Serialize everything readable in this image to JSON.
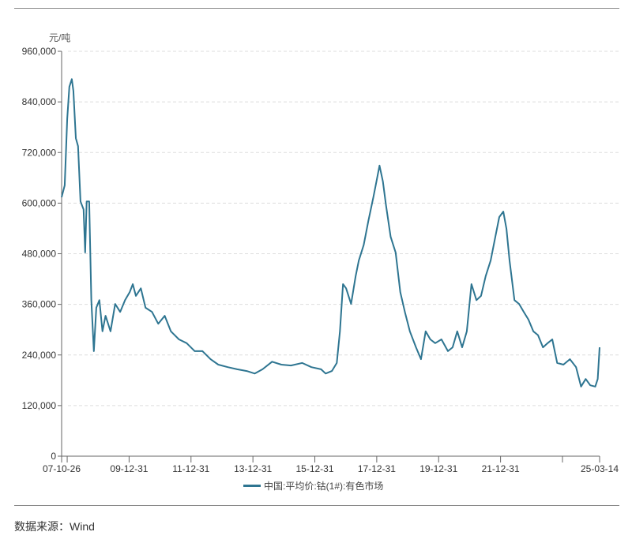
{
  "source": "数据来源：Wind",
  "chart_data": {
    "type": "line",
    "title": "",
    "ylabel": "元/吨",
    "xlabel": "",
    "ylim": [
      0,
      960000
    ],
    "xlim": [
      2007.82,
      2025.2
    ],
    "y_ticks": [
      {
        "value": 0,
        "label": "0"
      },
      {
        "value": 120000,
        "label": "120,000"
      },
      {
        "value": 240000,
        "label": "240,000"
      },
      {
        "value": 360000,
        "label": "360,000"
      },
      {
        "value": 480000,
        "label": "480,000"
      },
      {
        "value": 600000,
        "label": "600,000"
      },
      {
        "value": 720000,
        "label": "720,000"
      },
      {
        "value": 840000,
        "label": "840,000"
      },
      {
        "value": 960000,
        "label": "960,000"
      }
    ],
    "x_ticks": [
      {
        "value": 2007.82,
        "label": "07-10-26"
      },
      {
        "value": 2008.0,
        "label": ""
      },
      {
        "value": 2010.0,
        "label": "09-12-31"
      },
      {
        "value": 2012.0,
        "label": "11-12-31"
      },
      {
        "value": 2014.0,
        "label": "13-12-31"
      },
      {
        "value": 2016.0,
        "label": "15-12-31"
      },
      {
        "value": 2018.0,
        "label": "17-12-31"
      },
      {
        "value": 2020.0,
        "label": "19-12-31"
      },
      {
        "value": 2022.0,
        "label": "21-12-31"
      },
      {
        "value": 2024.0,
        "label": ""
      },
      {
        "value": 2025.2,
        "label": "25-03-14"
      }
    ],
    "grid": "horizontal-dashed",
    "legend_position": "bottom-center",
    "series": [
      {
        "name": "中国:平均价:钴(1#):有色市场",
        "color": "#2e7591",
        "x": [
          2007.82,
          2007.92,
          2008.0,
          2008.07,
          2008.15,
          2008.2,
          2008.28,
          2008.35,
          2008.43,
          2008.53,
          2008.58,
          2008.63,
          2008.71,
          2008.78,
          2008.86,
          2008.94,
          2009.04,
          2009.14,
          2009.24,
          2009.4,
          2009.55,
          2009.71,
          2009.87,
          2010.02,
          2010.12,
          2010.22,
          2010.38,
          2010.53,
          2010.74,
          2010.94,
          2011.15,
          2011.35,
          2011.61,
          2011.86,
          2012.12,
          2012.37,
          2012.63,
          2012.88,
          2013.19,
          2013.49,
          2013.8,
          2014.06,
          2014.31,
          2014.62,
          2014.92,
          2015.23,
          2015.59,
          2015.89,
          2016.2,
          2016.35,
          2016.55,
          2016.71,
          2016.81,
          2016.91,
          2017.01,
          2017.17,
          2017.32,
          2017.42,
          2017.58,
          2017.73,
          2017.89,
          2017.99,
          2018.09,
          2018.2,
          2018.3,
          2018.45,
          2018.61,
          2018.76,
          2018.91,
          2019.07,
          2019.27,
          2019.43,
          2019.58,
          2019.73,
          2019.89,
          2020.09,
          2020.3,
          2020.45,
          2020.6,
          2020.76,
          2020.91,
          2021.06,
          2021.22,
          2021.37,
          2021.52,
          2021.68,
          2021.83,
          2021.96,
          2022.09,
          2022.19,
          2022.29,
          2022.45,
          2022.6,
          2022.75,
          2022.9,
          2023.06,
          2023.21,
          2023.37,
          2023.52,
          2023.67,
          2023.83,
          2024.03,
          2024.24,
          2024.44,
          2024.6,
          2024.75,
          2024.9,
          2025.06,
          2025.14,
          2025.2
        ],
        "y": [
          614000,
          642000,
          800000,
          876000,
          894000,
          866000,
          754000,
          735000,
          604000,
          585000,
          483000,
          604000,
          604000,
          370000,
          249000,
          352000,
          370000,
          296000,
          333000,
          296000,
          361000,
          342000,
          370000,
          389000,
          408000,
          380000,
          398000,
          352000,
          342000,
          314000,
          333000,
          296000,
          277000,
          268000,
          249000,
          249000,
          230000,
          217000,
          211000,
          206000,
          202000,
          196000,
          206000,
          224000,
          217000,
          215000,
          221000,
          211000,
          206000,
          196000,
          202000,
          221000,
          296000,
          408000,
          398000,
          361000,
          427000,
          464000,
          501000,
          558000,
          614000,
          651000,
          689000,
          651000,
          595000,
          520000,
          483000,
          389000,
          342000,
          296000,
          258000,
          230000,
          296000,
          277000,
          268000,
          277000,
          249000,
          258000,
          296000,
          258000,
          296000,
          408000,
          370000,
          380000,
          427000,
          464000,
          520000,
          567000,
          580000,
          539000,
          464000,
          370000,
          361000,
          342000,
          324000,
          296000,
          287000,
          258000,
          268000,
          277000,
          221000,
          217000,
          230000,
          211000,
          165000,
          183000,
          168000,
          165000,
          183000,
          258000
        ]
      }
    ]
  }
}
